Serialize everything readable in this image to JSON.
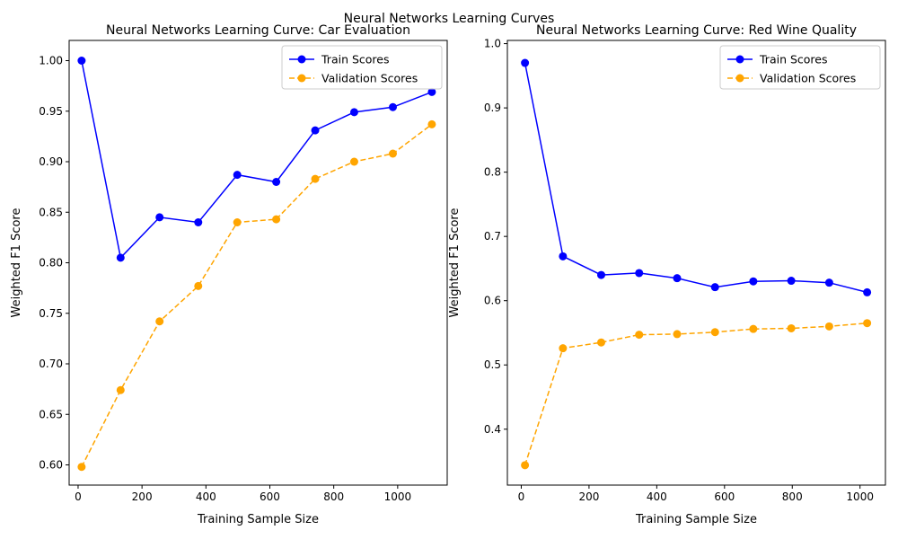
{
  "figure_title": "Neural Networks Learning Curves",
  "colors": {
    "train": "#0000ff",
    "validation": "#ffa500"
  },
  "chart_data": [
    {
      "type": "line",
      "title": "Neural Networks Learning Curve: Car Evaluation",
      "xlabel": "Training Sample Size",
      "ylabel": "Weighted F1 Score",
      "xlim": [
        -28,
        1155
      ],
      "ylim": [
        0.58,
        1.02
      ],
      "xticks": [
        0,
        200,
        400,
        600,
        800,
        1000
      ],
      "yticks": [
        0.6,
        0.65,
        0.7,
        0.75,
        0.8,
        0.85,
        0.9,
        0.95,
        1.0
      ],
      "ytick_decimals": 2,
      "legend_position": "top-right",
      "grid": false,
      "x": [
        11,
        133,
        255,
        376,
        498,
        620,
        742,
        864,
        985,
        1107
      ],
      "series": [
        {
          "name": "Train Scores",
          "style": "solid",
          "values": [
            1.0,
            0.805,
            0.845,
            0.84,
            0.887,
            0.88,
            0.931,
            0.949,
            0.954,
            0.969
          ]
        },
        {
          "name": "Validation Scores",
          "style": "dashed",
          "values": [
            0.598,
            0.674,
            0.742,
            0.777,
            0.84,
            0.843,
            0.883,
            0.9,
            0.908,
            0.937
          ]
        }
      ]
    },
    {
      "type": "line",
      "title": "Neural Networks Learning Curve: Red Wine Quality",
      "xlabel": "Training Sample Size",
      "ylabel": "Weighted F1 Score",
      "xlim": [
        -41,
        1075
      ],
      "ylim": [
        0.313,
        1.005
      ],
      "xticks": [
        0,
        200,
        400,
        600,
        800,
        1000
      ],
      "yticks": [
        0.4,
        0.5,
        0.6,
        0.7,
        0.8,
        0.9,
        1.0
      ],
      "ytick_decimals": 1,
      "legend_position": "top-right",
      "grid": false,
      "x": [
        11,
        123,
        236,
        348,
        460,
        572,
        685,
        797,
        909,
        1021
      ],
      "series": [
        {
          "name": "Train Scores",
          "style": "solid",
          "values": [
            0.97,
            0.669,
            0.64,
            0.643,
            0.635,
            0.621,
            0.63,
            0.631,
            0.628,
            0.613
          ]
        },
        {
          "name": "Validation Scores",
          "style": "dashed",
          "values": [
            0.344,
            0.526,
            0.535,
            0.547,
            0.548,
            0.551,
            0.556,
            0.557,
            0.56,
            0.565
          ]
        }
      ]
    }
  ]
}
